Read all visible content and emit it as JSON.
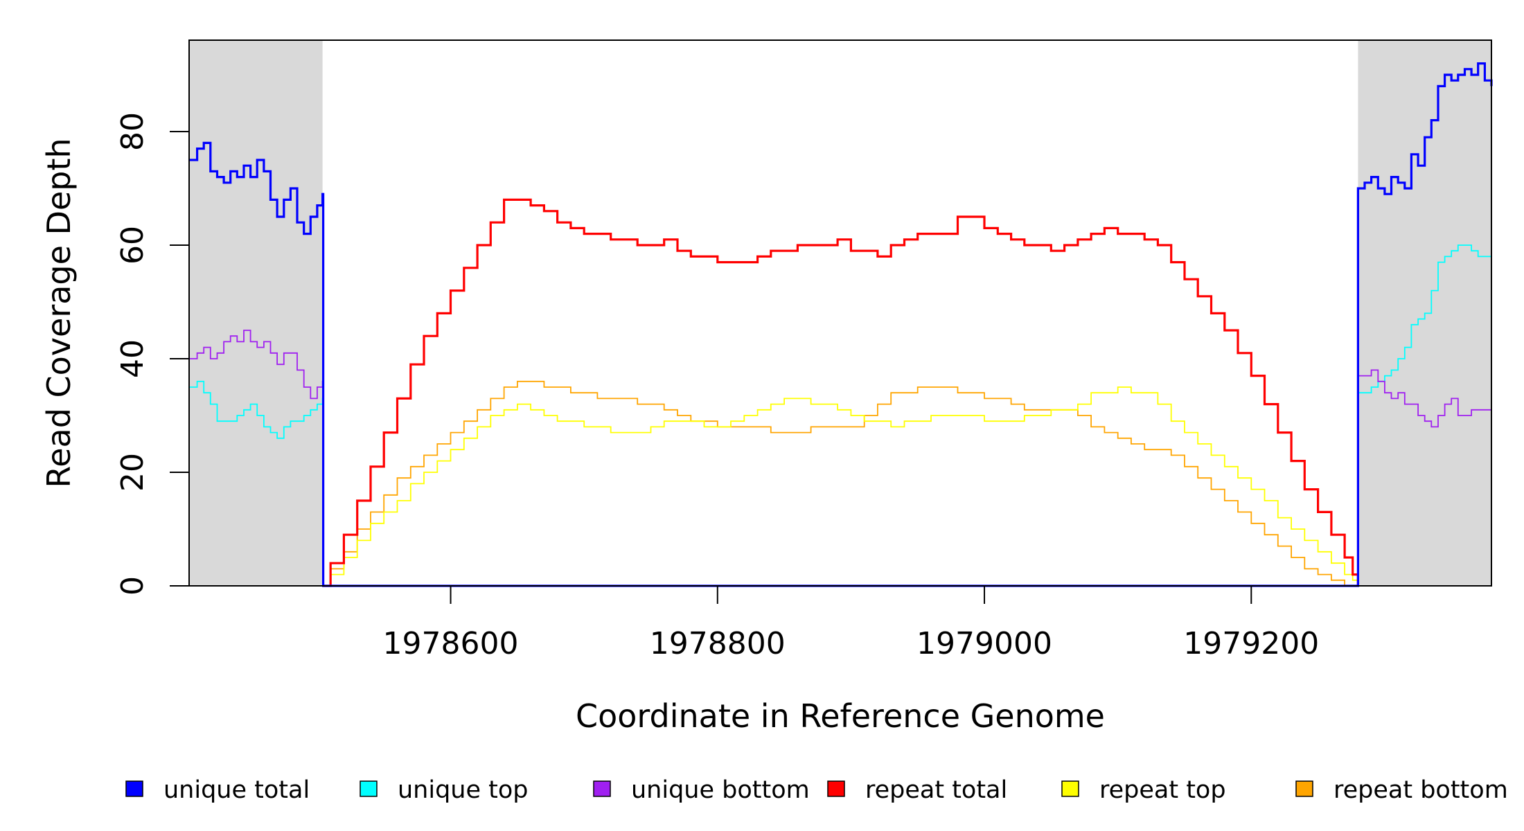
{
  "chart_data": {
    "type": "line",
    "title": "",
    "xlabel": "Coordinate in Reference Genome",
    "ylabel": "Read Coverage Depth",
    "xlim": [
      1978404,
      1979380
    ],
    "ylim": [
      0,
      97
    ],
    "x_ticks": [
      1978600,
      1978800,
      1979000,
      1979200
    ],
    "x_tick_labels": [
      "1978600",
      "1978800",
      "1979000",
      "1979200"
    ],
    "y_ticks": [
      0,
      20,
      40,
      60,
      80
    ],
    "y_tick_labels": [
      "0",
      "20",
      "40",
      "60",
      "80"
    ],
    "grid": false,
    "legend_position": "bottom",
    "shaded_regions": [
      {
        "x0": 1978404,
        "x1": 1978504,
        "color": "#d9d9d9"
      },
      {
        "x0": 1979280,
        "x1": 1979380,
        "color": "#d9d9d9"
      }
    ],
    "series": [
      {
        "name": "unique total",
        "color": "#0000ff",
        "x": [
          1978404,
          1978410,
          1978415,
          1978420,
          1978425,
          1978430,
          1978435,
          1978440,
          1978445,
          1978450,
          1978455,
          1978460,
          1978465,
          1978470,
          1978475,
          1978480,
          1978485,
          1978490,
          1978495,
          1978500,
          1978504,
          1978504.5,
          1979279.5,
          1979280,
          1979285,
          1979290,
          1979295,
          1979300,
          1979305,
          1979310,
          1979315,
          1979320,
          1979325,
          1979330,
          1979335,
          1979340,
          1979345,
          1979350,
          1979355,
          1979360,
          1979365,
          1979370,
          1979375,
          1979380
        ],
        "values": [
          75,
          77,
          78,
          73,
          72,
          71,
          73,
          72,
          74,
          72,
          75,
          73,
          68,
          65,
          68,
          70,
          64,
          62,
          65,
          67,
          69,
          0,
          0,
          70,
          71,
          72,
          70,
          69,
          72,
          71,
          70,
          76,
          74,
          79,
          82,
          88,
          90,
          89,
          90,
          91,
          90,
          92,
          89,
          88
        ]
      },
      {
        "name": "unique top",
        "color": "#00ffff",
        "x": [
          1978404,
          1978410,
          1978415,
          1978420,
          1978425,
          1978430,
          1978435,
          1978440,
          1978445,
          1978450,
          1978455,
          1978460,
          1978465,
          1978470,
          1978475,
          1978480,
          1978485,
          1978490,
          1978495,
          1978500,
          1978504,
          1978504.5,
          1979279.5,
          1979280,
          1979285,
          1979290,
          1979295,
          1979300,
          1979305,
          1979310,
          1979315,
          1979320,
          1979325,
          1979330,
          1979335,
          1979340,
          1979345,
          1979350,
          1979355,
          1979360,
          1979365,
          1979370,
          1979375,
          1979380
        ],
        "values": [
          35,
          36,
          34,
          32,
          29,
          29,
          29,
          30,
          31,
          32,
          30,
          28,
          27,
          26,
          28,
          29,
          29,
          30,
          31,
          32,
          33,
          0,
          0,
          34,
          34,
          35,
          36,
          37,
          38,
          40,
          42,
          46,
          47,
          48,
          52,
          57,
          58,
          59,
          60,
          60,
          59,
          58,
          58,
          57
        ]
      },
      {
        "name": "unique bottom",
        "color": "#a020f0",
        "x": [
          1978404,
          1978410,
          1978415,
          1978420,
          1978425,
          1978430,
          1978435,
          1978440,
          1978445,
          1978450,
          1978455,
          1978460,
          1978465,
          1978470,
          1978475,
          1978480,
          1978485,
          1978490,
          1978495,
          1978500,
          1978504,
          1978504.5,
          1979279.5,
          1979280,
          1979285,
          1979290,
          1979295,
          1979300,
          1979305,
          1979310,
          1979315,
          1979320,
          1979325,
          1979330,
          1979335,
          1979340,
          1979345,
          1979350,
          1979355,
          1979360,
          1979365,
          1979370,
          1979375,
          1979380
        ],
        "values": [
          40,
          41,
          42,
          40,
          41,
          43,
          44,
          43,
          45,
          43,
          42,
          43,
          41,
          39,
          41,
          41,
          38,
          35,
          33,
          35,
          36,
          0,
          0,
          37,
          37,
          38,
          36,
          34,
          33,
          34,
          32,
          32,
          30,
          29,
          28,
          30,
          32,
          33,
          30,
          30,
          31,
          31,
          31,
          31
        ]
      },
      {
        "name": "repeat total",
        "color": "#ff0000",
        "x": [
          1978504,
          1978510,
          1978520,
          1978530,
          1978540,
          1978550,
          1978560,
          1978570,
          1978580,
          1978590,
          1978600,
          1978610,
          1978620,
          1978630,
          1978640,
          1978650,
          1978660,
          1978670,
          1978680,
          1978690,
          1978700,
          1978710,
          1978720,
          1978730,
          1978740,
          1978750,
          1978760,
          1978770,
          1978780,
          1978790,
          1978800,
          1978810,
          1978820,
          1978830,
          1978840,
          1978850,
          1978860,
          1978870,
          1978880,
          1978890,
          1978900,
          1978910,
          1978920,
          1978930,
          1978940,
          1978950,
          1978960,
          1978970,
          1978980,
          1978990,
          1979000,
          1979010,
          1979020,
          1979030,
          1979040,
          1979050,
          1979060,
          1979070,
          1979080,
          1979090,
          1979100,
          1979110,
          1979120,
          1979130,
          1979140,
          1979150,
          1979160,
          1979170,
          1979180,
          1979190,
          1979200,
          1979210,
          1979220,
          1979230,
          1979240,
          1979250,
          1979260,
          1979270,
          1979276,
          1979280
        ],
        "values": [
          0,
          4,
          9,
          15,
          21,
          27,
          33,
          39,
          44,
          48,
          52,
          56,
          60,
          64,
          68,
          68,
          67,
          66,
          64,
          63,
          62,
          62,
          61,
          61,
          60,
          60,
          61,
          59,
          58,
          58,
          57,
          57,
          57,
          58,
          59,
          59,
          60,
          60,
          60,
          61,
          59,
          59,
          58,
          60,
          61,
          62,
          62,
          62,
          65,
          65,
          63,
          62,
          61,
          60,
          60,
          59,
          60,
          61,
          62,
          63,
          62,
          62,
          61,
          60,
          57,
          54,
          51,
          48,
          45,
          41,
          37,
          32,
          27,
          22,
          17,
          13,
          9,
          5,
          2,
          0
        ]
      },
      {
        "name": "repeat top",
        "color": "#ffff00",
        "x": [
          1978504,
          1978510,
          1978520,
          1978530,
          1978540,
          1978550,
          1978560,
          1978570,
          1978580,
          1978590,
          1978600,
          1978610,
          1978620,
          1978630,
          1978640,
          1978650,
          1978660,
          1978670,
          1978680,
          1978690,
          1978700,
          1978710,
          1978720,
          1978730,
          1978740,
          1978750,
          1978760,
          1978770,
          1978780,
          1978790,
          1978800,
          1978810,
          1978820,
          1978830,
          1978840,
          1978850,
          1978860,
          1978870,
          1978880,
          1978890,
          1978900,
          1978910,
          1978920,
          1978930,
          1978940,
          1978950,
          1978960,
          1978970,
          1978980,
          1978990,
          1979000,
          1979010,
          1979020,
          1979030,
          1979040,
          1979050,
          1979060,
          1979070,
          1979080,
          1979090,
          1979100,
          1979110,
          1979120,
          1979130,
          1979140,
          1979150,
          1979160,
          1979170,
          1979180,
          1979190,
          1979200,
          1979210,
          1979220,
          1979230,
          1979240,
          1979250,
          1979260,
          1979270,
          1979276,
          1979280
        ],
        "values": [
          0,
          2,
          5,
          8,
          11,
          13,
          15,
          18,
          20,
          22,
          24,
          26,
          28,
          30,
          31,
          32,
          31,
          30,
          29,
          29,
          28,
          28,
          27,
          27,
          27,
          28,
          29,
          29,
          29,
          28,
          28,
          29,
          30,
          31,
          32,
          33,
          33,
          32,
          32,
          31,
          30,
          29,
          29,
          28,
          29,
          29,
          30,
          30,
          30,
          30,
          29,
          29,
          29,
          30,
          30,
          31,
          31,
          32,
          34,
          34,
          35,
          34,
          34,
          32,
          29,
          27,
          25,
          23,
          21,
          19,
          17,
          15,
          12,
          10,
          8,
          6,
          4,
          2,
          1,
          0
        ]
      },
      {
        "name": "repeat bottom",
        "color": "#ffa500",
        "x": [
          1978504,
          1978510,
          1978520,
          1978530,
          1978540,
          1978550,
          1978560,
          1978570,
          1978580,
          1978590,
          1978600,
          1978610,
          1978620,
          1978630,
          1978640,
          1978650,
          1978660,
          1978670,
          1978680,
          1978690,
          1978700,
          1978710,
          1978720,
          1978730,
          1978740,
          1978750,
          1978760,
          1978770,
          1978780,
          1978790,
          1978800,
          1978810,
          1978820,
          1978830,
          1978840,
          1978850,
          1978860,
          1978870,
          1978880,
          1978890,
          1978900,
          1978910,
          1978920,
          1978930,
          1978940,
          1978950,
          1978960,
          1978970,
          1978980,
          1978990,
          1979000,
          1979010,
          1979020,
          1979030,
          1979040,
          1979050,
          1979060,
          1979070,
          1979080,
          1979090,
          1979100,
          1979110,
          1979120,
          1979130,
          1979140,
          1979150,
          1979160,
          1979170,
          1979180,
          1979190,
          1979200,
          1979210,
          1979220,
          1979230,
          1979240,
          1979250,
          1979260,
          1979270,
          1979276,
          1979280
        ],
        "values": [
          0,
          3,
          6,
          10,
          13,
          16,
          19,
          21,
          23,
          25,
          27,
          29,
          31,
          33,
          35,
          36,
          36,
          35,
          35,
          34,
          34,
          33,
          33,
          33,
          32,
          32,
          31,
          30,
          29,
          29,
          28,
          28,
          28,
          28,
          27,
          27,
          27,
          28,
          28,
          28,
          28,
          30,
          32,
          34,
          34,
          35,
          35,
          35,
          34,
          34,
          33,
          33,
          32,
          31,
          31,
          31,
          31,
          30,
          28,
          27,
          26,
          25,
          24,
          24,
          23,
          21,
          19,
          17,
          15,
          13,
          11,
          9,
          7,
          5,
          3,
          2,
          1,
          0,
          0,
          0
        ]
      }
    ]
  }
}
